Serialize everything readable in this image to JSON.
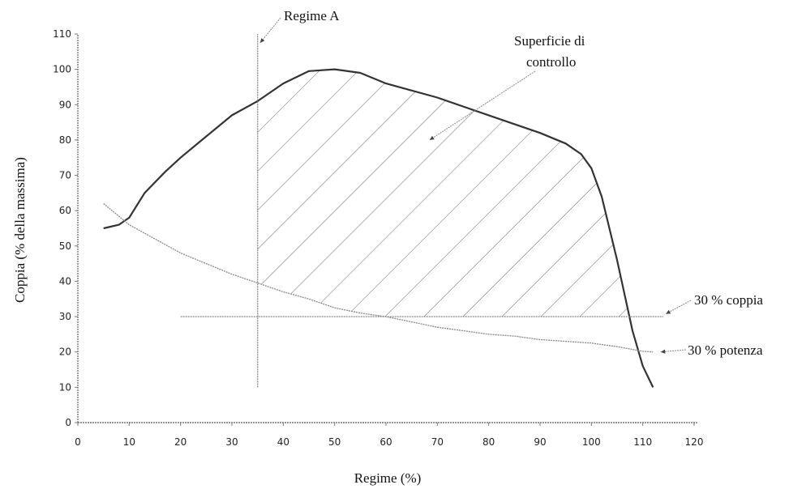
{
  "chart_data": {
    "type": "line",
    "title": "",
    "xlabel": "Regime (%)",
    "ylabel": "Coppia (% della massima)",
    "xlim": [
      0,
      120
    ],
    "ylim": [
      0,
      110
    ],
    "x_ticks": [
      "0",
      "10",
      "20",
      "30",
      "40",
      "50",
      "60",
      "70",
      "80",
      "90",
      "100",
      "110",
      "120"
    ],
    "y_ticks": [
      "0",
      "10",
      "20",
      "30",
      "40",
      "50",
      "60",
      "70",
      "80",
      "90",
      "100",
      "110"
    ],
    "grid": false,
    "series": [
      {
        "role": "full-load-torque-curve",
        "color": "#333333",
        "x": [
          5,
          8,
          10,
          13,
          17,
          20,
          25,
          30,
          35,
          40,
          45,
          50,
          55,
          60,
          65,
          70,
          75,
          80,
          85,
          90,
          95,
          98,
          100,
          102,
          105,
          108,
          110,
          112
        ],
        "y": [
          55,
          56,
          58,
          65,
          71,
          75,
          81,
          87,
          91,
          96,
          99.5,
          100,
          99,
          96,
          94,
          92,
          89.5,
          87,
          84.5,
          82,
          79,
          76,
          72,
          64,
          46,
          26,
          16,
          10
        ]
      },
      {
        "role": "30-percent-power-curve",
        "color": "#888888",
        "x": [
          5,
          10,
          15,
          20,
          25,
          30,
          35,
          40,
          45,
          50,
          55,
          60,
          65,
          70,
          75,
          80,
          85,
          90,
          95,
          100,
          105,
          110,
          112
        ],
        "y": [
          62,
          56,
          52,
          48,
          45,
          42,
          39.5,
          37,
          35,
          32.5,
          31,
          30,
          28.5,
          27,
          26,
          25,
          24.5,
          23.5,
          23,
          22.5,
          21.5,
          20.2,
          20
        ]
      },
      {
        "role": "30-percent-torque-line",
        "color": "#888888",
        "x": [
          20,
          114
        ],
        "y": [
          30,
          30
        ]
      },
      {
        "role": "regime-A-line",
        "color": "#888888",
        "x": [
          35,
          35
        ],
        "y": [
          10,
          110
        ]
      }
    ],
    "shaded_region": {
      "description": "control surface between Regime A and full-load curve above max(30% torque, 30% power)",
      "x_from": 35,
      "x_to": 112,
      "hatch": "diagonal"
    },
    "annotations": [
      {
        "text": "Regime A",
        "x": 35.5,
        "y": 109
      },
      {
        "text": "Superficie di controllo",
        "x": 70,
        "y": 81
      },
      {
        "text": "30 % coppia",
        "x": 115,
        "y": 31
      },
      {
        "text": "30 % potenza",
        "x": 114,
        "y": 20
      }
    ]
  },
  "labels": {
    "xlabel": "Regime (%)",
    "ylabel": "Coppia (% della massima)",
    "regime_a": "Regime A",
    "superficie_line1": "Superficie di",
    "superficie_line2": "controllo",
    "coppia30": "30 % coppia",
    "potenza30": "30 % potenza"
  }
}
